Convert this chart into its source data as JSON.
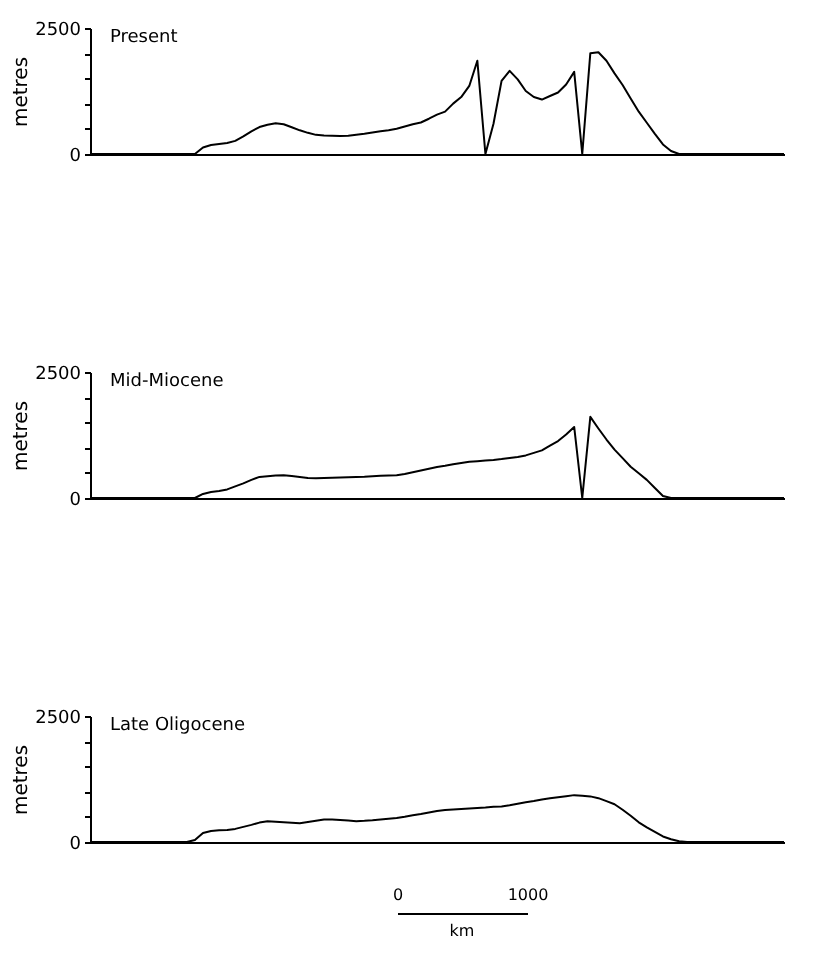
{
  "chart_data": [
    {
      "type": "line",
      "title": "Present",
      "ylabel": "metres",
      "categories": [
        null,
        null,
        null,
        null,
        null,
        null,
        null,
        null,
        null,
        null,
        null,
        null,
        null,
        null,
        null,
        null,
        null,
        null,
        null,
        null,
        null,
        null,
        null,
        null,
        null,
        null,
        null,
        null,
        null,
        null,
        null,
        null,
        null,
        null,
        null,
        null,
        null,
        null,
        null,
        null,
        null,
        null,
        null,
        null,
        null,
        null,
        null,
        null,
        null,
        null,
        null,
        null,
        null,
        null,
        null,
        null,
        null,
        null,
        null,
        null,
        null,
        null,
        null,
        null,
        null,
        null,
        null,
        null,
        null,
        null,
        null,
        null,
        null,
        null,
        null,
        null,
        null,
        null,
        null,
        null,
        null,
        null,
        null,
        null,
        null,
        null,
        null
      ],
      "ylim": [
        0,
        2500
      ],
      "yticks": [
        0,
        {
          "value": 500,
          "label": null
        },
        {
          "value": 1000,
          "label": null
        },
        {
          "value": 1500,
          "label": null
        },
        {
          "value": 2000,
          "label": null
        },
        2500
      ],
      "tick_labels": "y",
      "grid": false,
      "series": [
        {
          "color": "#000000",
          "values": [
            0,
            0,
            0,
            0,
            0,
            0,
            0,
            0,
            0,
            0,
            0,
            0,
            0,
            0,
            130,
            180,
            200,
            220,
            260,
            350,
            450,
            535,
            580,
            610,
            590,
            530,
            470,
            420,
            380,
            365,
            360,
            357,
            360,
            380,
            400,
            425,
            450,
            470,
            500,
            545,
            590,
            625,
            700,
            780,
            840,
            1000,
            1130,
            1350,
            1850,
            0,
            600,
            1450,
            1650,
            1480,
            1250,
            1130,
            1080,
            1150,
            1220,
            1380,
            1630,
            0,
            2000,
            2020,
            1850,
            1600,
            1370,
            1100,
            840,
            620,
            400,
            190,
            60,
            0,
            0,
            0,
            0,
            0,
            0,
            0,
            0,
            0,
            0,
            0,
            0,
            0,
            0
          ]
        }
      ]
    },
    {
      "type": "line",
      "title": "Mid-Miocene",
      "ylabel": "metres",
      "categories": [
        null,
        null,
        null,
        null,
        null,
        null,
        null,
        null,
        null,
        null,
        null,
        null,
        null,
        null,
        null,
        null,
        null,
        null,
        null,
        null,
        null,
        null,
        null,
        null,
        null,
        null,
        null,
        null,
        null,
        null,
        null,
        null,
        null,
        null,
        null,
        null,
        null,
        null,
        null,
        null,
        null,
        null,
        null,
        null,
        null,
        null,
        null,
        null,
        null,
        null,
        null,
        null,
        null,
        null,
        null,
        null,
        null,
        null,
        null,
        null,
        null,
        null,
        null,
        null,
        null,
        null,
        null,
        null,
        null,
        null,
        null,
        null,
        null,
        null,
        null,
        null,
        null,
        null,
        null,
        null,
        null,
        null,
        null,
        null,
        null,
        null,
        null
      ],
      "ylim": [
        0,
        2500
      ],
      "yticks": [
        0,
        {
          "value": 500,
          "label": null
        },
        {
          "value": 1000,
          "label": null
        },
        {
          "value": 1500,
          "label": null
        },
        {
          "value": 2000,
          "label": null
        },
        2500
      ],
      "tick_labels": "y",
      "grid": false,
      "series": [
        {
          "color": "#000000",
          "values": [
            0,
            0,
            0,
            0,
            0,
            0,
            0,
            0,
            0,
            0,
            0,
            0,
            0,
            0,
            80,
            120,
            140,
            170,
            230,
            290,
            360,
            418,
            430,
            445,
            452,
            435,
            415,
            395,
            392,
            397,
            402,
            405,
            410,
            415,
            420,
            430,
            440,
            448,
            452,
            475,
            510,
            545,
            580,
            615,
            640,
            670,
            695,
            718,
            730,
            745,
            755,
            773,
            795,
            815,
            845,
            895,
            945,
            1040,
            1130,
            1260,
            1410,
            0,
            1610,
            1380,
            1160,
            960,
            790,
            620,
            490,
            360,
            200,
            40,
            0,
            0,
            0,
            0,
            0,
            0,
            0,
            0,
            0,
            0,
            0,
            0,
            0,
            0,
            0
          ]
        }
      ]
    },
    {
      "type": "line",
      "title": "Late Oligocene",
      "ylabel": "metres",
      "categories": [
        null,
        null,
        null,
        null,
        null,
        null,
        null,
        null,
        null,
        null,
        null,
        null,
        null,
        null,
        null,
        null,
        null,
        null,
        null,
        null,
        null,
        null,
        null,
        null,
        null,
        null,
        null,
        null,
        null,
        null,
        null,
        null,
        null,
        null,
        null,
        null,
        null,
        null,
        null,
        null,
        null,
        null,
        null,
        null,
        null,
        null,
        null,
        null,
        null,
        null,
        null,
        null,
        null,
        null,
        null,
        null,
        null,
        null,
        null,
        null,
        null,
        null,
        null,
        null,
        null,
        null,
        null,
        null,
        null,
        null,
        null,
        null,
        null,
        null,
        null,
        null,
        null,
        null,
        null,
        null,
        null,
        null,
        null,
        null,
        null,
        null,
        null
      ],
      "ylim": [
        0,
        2500
      ],
      "yticks": [
        0,
        {
          "value": 500,
          "label": null
        },
        {
          "value": 1000,
          "label": null
        },
        {
          "value": 1500,
          "label": null
        },
        {
          "value": 2000,
          "label": null
        },
        2500
      ],
      "tick_labels": "y",
      "grid": false,
      "annotations": [
        "0",
        "1000",
        "km"
      ],
      "series": [
        {
          "color": "#000000",
          "values": [
            0,
            0,
            0,
            0,
            0,
            0,
            0,
            0,
            0,
            0,
            0,
            0,
            0,
            40,
            180,
            220,
            232,
            238,
            260,
            300,
            340,
            385,
            410,
            400,
            390,
            380,
            373,
            395,
            420,
            448,
            445,
            435,
            425,
            414,
            420,
            430,
            445,
            460,
            475,
            500,
            530,
            555,
            585,
            615,
            635,
            645,
            655,
            665,
            675,
            685,
            700,
            705,
            730,
            760,
            790,
            815,
            845,
            870,
            890,
            910,
            930,
            920,
            905,
            870,
            810,
            750,
            640,
            520,
            390,
            290,
            200,
            110,
            55,
            15,
            0,
            0,
            0,
            0,
            0,
            0,
            0,
            0,
            0,
            0,
            0,
            0,
            0
          ]
        }
      ]
    }
  ]
}
